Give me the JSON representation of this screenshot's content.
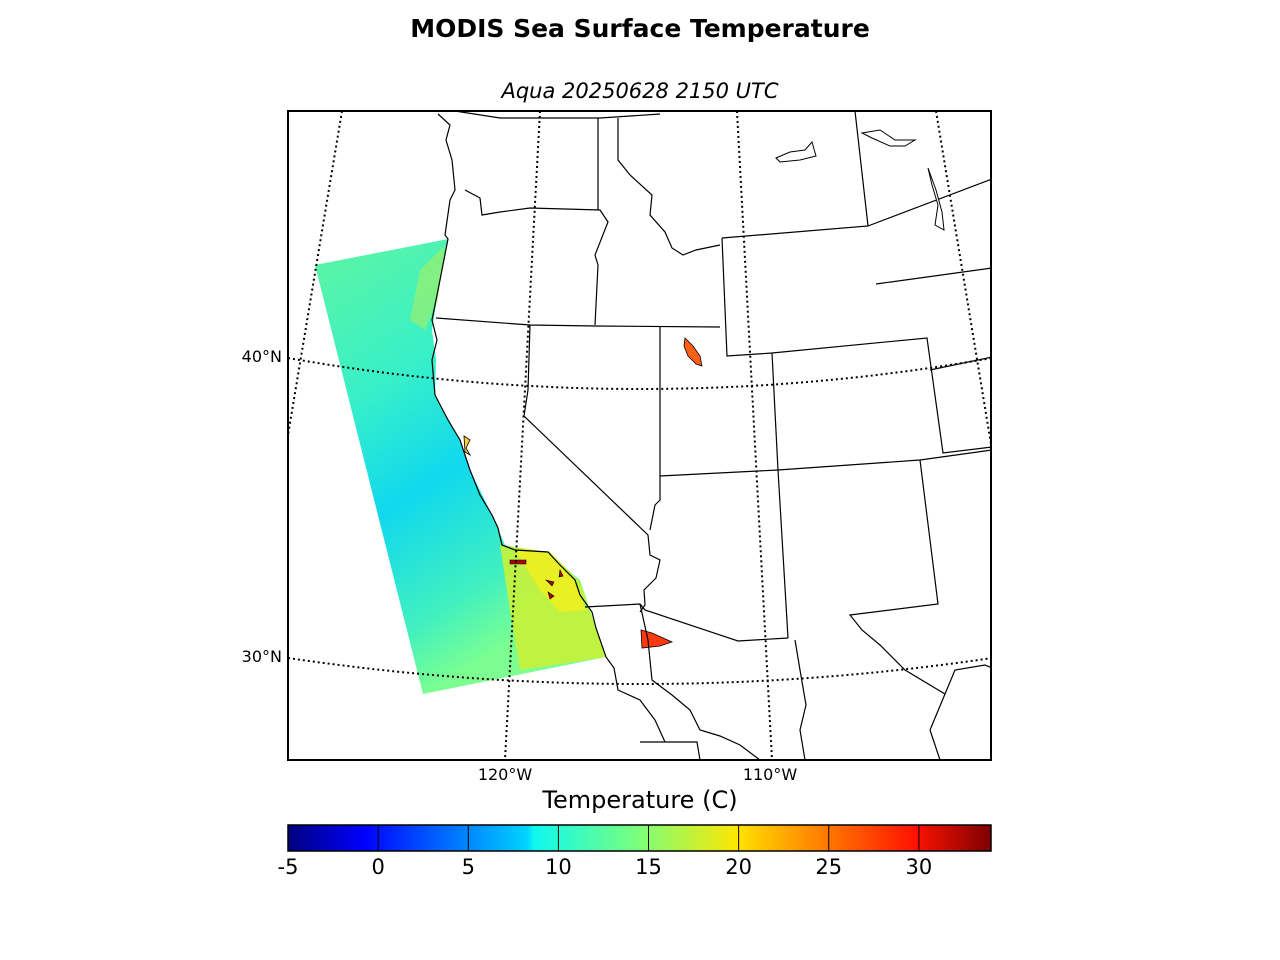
{
  "header": {
    "title": "MODIS Sea Surface Temperature",
    "subtitle": "Aqua 20250628 2150 UTC"
  },
  "map": {
    "lat_labels": [
      "40°N",
      "30°N"
    ],
    "lon_labels": [
      "120°W",
      "110°W"
    ]
  },
  "colorbar": {
    "label": "Temperature (C)",
    "colormap": "jet",
    "range": [
      -5,
      34
    ],
    "ticks": [
      "-5",
      "0",
      "5",
      "10",
      "15",
      "20",
      "25",
      "30"
    ]
  }
}
